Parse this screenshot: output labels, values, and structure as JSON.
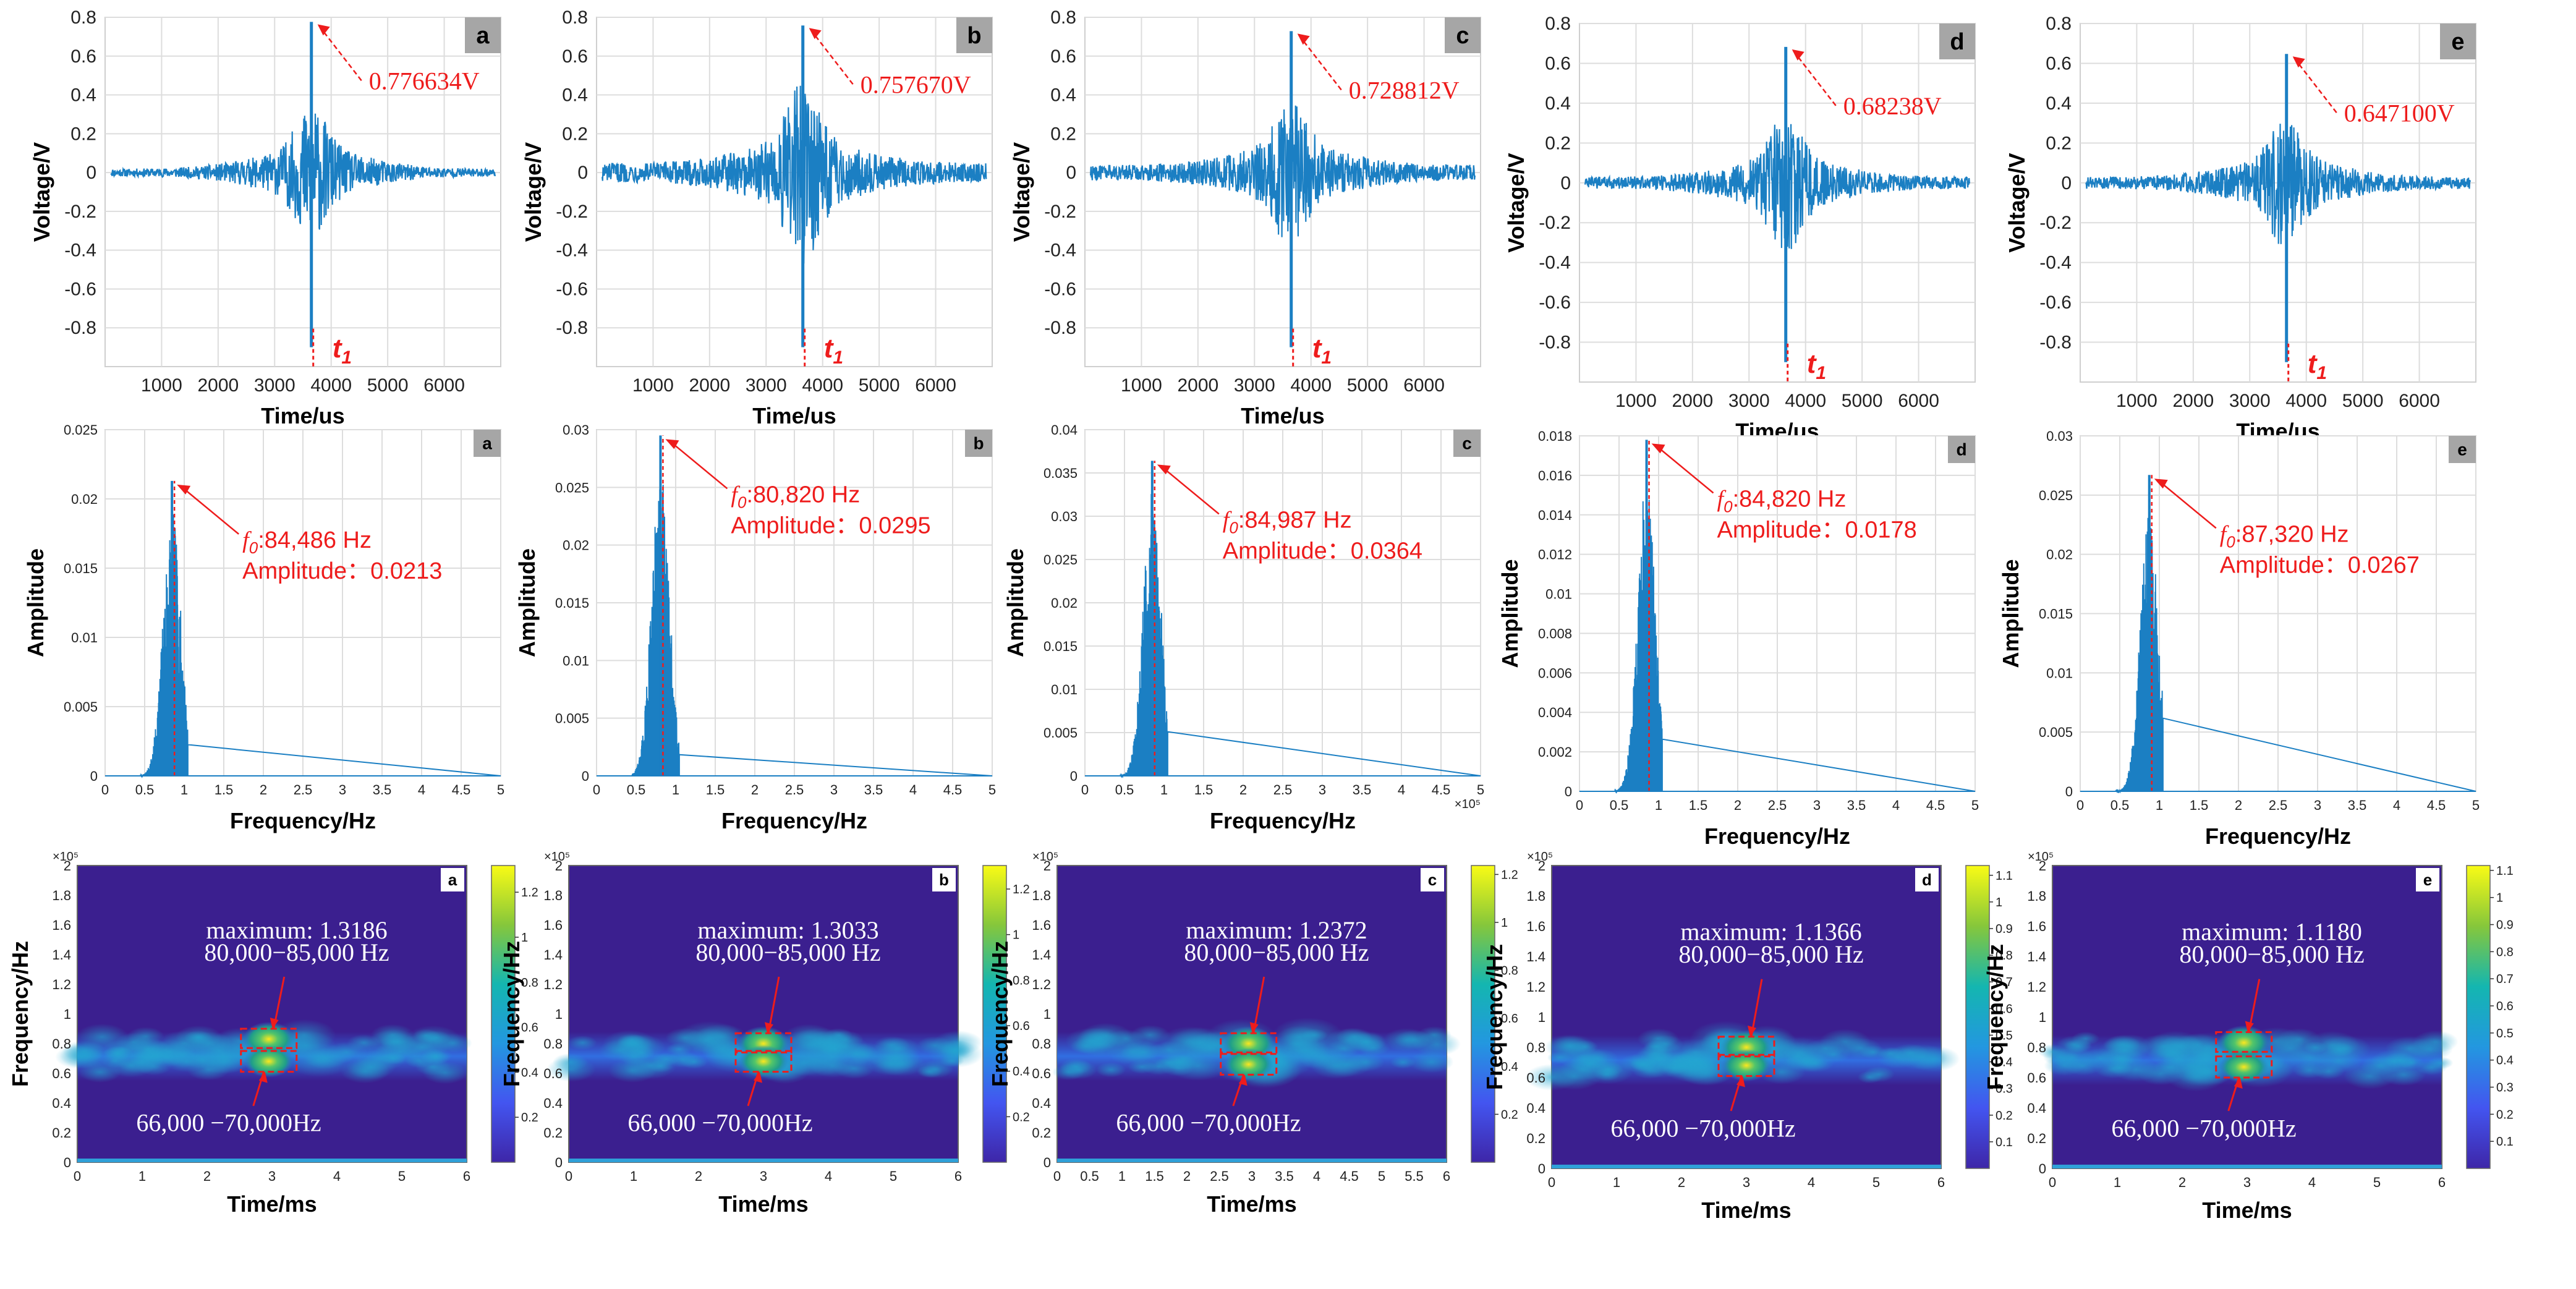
{
  "colors": {
    "signal": "#1b7fc3",
    "annotation": "#ee1c1c",
    "grid": "#dddddd",
    "letter_box": "#a6a6a6",
    "spectrogram_bg": "#3b1f8f"
  },
  "chart_data": [
    {
      "type": "line",
      "row": "waveform",
      "panel": "a",
      "xlabel": "Time/us",
      "ylabel": "Voltage/V",
      "xlim": [
        0,
        7000
      ],
      "ylim": [
        -1,
        0.8
      ],
      "xticks": [
        1000,
        2000,
        3000,
        4000,
        5000,
        6000
      ],
      "yticks": [
        -0.8,
        -0.6,
        -0.4,
        -0.2,
        0,
        0.2,
        0.4,
        0.6,
        0.8
      ],
      "peak_time_us": 3650,
      "peak_value": 0.776634,
      "min_value": -0.9,
      "envelope": [
        0.02,
        0.1,
        0.22,
        0.05
      ],
      "peak_label": "0.776634V",
      "marker_label": "t1"
    },
    {
      "type": "line",
      "row": "waveform",
      "panel": "b",
      "xlabel": "Time/us",
      "ylabel": "Voltage/V",
      "xlim": [
        0,
        7000
      ],
      "ylim": [
        -1,
        0.8
      ],
      "xticks": [
        1000,
        2000,
        3000,
        4000,
        5000,
        6000
      ],
      "yticks": [
        -0.8,
        -0.6,
        -0.4,
        -0.2,
        0,
        0.2,
        0.4,
        0.6,
        0.8
      ],
      "peak_time_us": 3650,
      "peak_value": 0.75767,
      "min_value": -0.9,
      "envelope": [
        0.05,
        0.12,
        0.3,
        0.1
      ],
      "peak_label": "0.757670V",
      "marker_label": "t1"
    },
    {
      "type": "line",
      "row": "waveform",
      "panel": "c",
      "xlabel": "Time/us",
      "ylabel": "Voltage/V",
      "xlim": [
        0,
        7000
      ],
      "ylim": [
        -1,
        0.8
      ],
      "xticks": [
        1000,
        2000,
        3000,
        4000,
        5000,
        6000
      ],
      "yticks": [
        -0.8,
        -0.6,
        -0.4,
        -0.2,
        0,
        0.2,
        0.4,
        0.6,
        0.8
      ],
      "peak_time_us": 3650,
      "peak_value": 0.728812,
      "min_value": -0.9,
      "envelope": [
        0.04,
        0.1,
        0.26,
        0.07
      ],
      "peak_label": "0.728812V",
      "marker_label": "t1"
    },
    {
      "type": "line",
      "row": "waveform",
      "panel": "d",
      "xlabel": "Time/us",
      "ylabel": "Voltage/V",
      "xlim": [
        0,
        7000
      ],
      "ylim": [
        -1,
        0.8
      ],
      "xticks": [
        1000,
        2000,
        3000,
        4000,
        5000,
        6000
      ],
      "yticks": [
        -0.8,
        -0.6,
        -0.4,
        -0.2,
        0,
        0.2,
        0.4,
        0.6,
        0.8
      ],
      "peak_time_us": 3650,
      "peak_value": 0.68238,
      "min_value": -0.9,
      "envelope": [
        0.03,
        0.09,
        0.24,
        0.06
      ],
      "peak_label": "0.68238V",
      "marker_label": "t1"
    },
    {
      "type": "line",
      "row": "waveform",
      "panel": "e",
      "xlabel": "Time/us",
      "ylabel": "Voltage/V",
      "xlim": [
        0,
        7000
      ],
      "ylim": [
        -1,
        0.8
      ],
      "xticks": [
        1000,
        2000,
        3000,
        4000,
        5000,
        6000
      ],
      "yticks": [
        -0.8,
        -0.6,
        -0.4,
        -0.2,
        0,
        0.2,
        0.4,
        0.6,
        0.8
      ],
      "peak_time_us": 3650,
      "peak_value": 0.6471,
      "min_value": -0.9,
      "envelope": [
        0.03,
        0.09,
        0.22,
        0.06
      ],
      "peak_label": "0.647100V",
      "marker_label": "t1"
    },
    {
      "type": "line",
      "row": "spectrum",
      "panel": "a",
      "xlabel": "Frequency/Hz",
      "ylabel": "Amplitude",
      "xlim": [
        0,
        5
      ],
      "ylim": [
        0,
        0.025
      ],
      "xticks": [
        0,
        0.5,
        1,
        1.5,
        2,
        2.5,
        3,
        3.5,
        4,
        4.5,
        5
      ],
      "yticks": [
        0,
        0.005,
        0.01,
        0.015,
        0.02,
        0.025
      ],
      "peak_x": 0.845,
      "peak_amplitude": 0.0213,
      "f0_label": ":84,486 Hz",
      "amp_label": "Amplitude：0.0213",
      "exponent_label": ""
    },
    {
      "type": "line",
      "row": "spectrum",
      "panel": "b",
      "xlabel": "Frequency/Hz",
      "ylabel": "Amplitude",
      "xlim": [
        0,
        5
      ],
      "ylim": [
        0,
        0.03
      ],
      "xticks": [
        0,
        0.5,
        1,
        1.5,
        2,
        2.5,
        3,
        3.5,
        4,
        4.5,
        5
      ],
      "yticks": [
        0,
        0.005,
        0.01,
        0.015,
        0.02,
        0.025,
        0.03
      ],
      "peak_x": 0.808,
      "peak_amplitude": 0.0295,
      "f0_label": ":80,820 Hz",
      "amp_label": "Amplitude：0.0295",
      "exponent_label": ""
    },
    {
      "type": "line",
      "row": "spectrum",
      "panel": "c",
      "xlabel": "Frequency/Hz",
      "ylabel": "Amplitude",
      "xlim": [
        0,
        5
      ],
      "ylim": [
        0,
        0.04
      ],
      "xticks": [
        0,
        0.5,
        1,
        1.5,
        2,
        2.5,
        3,
        3.5,
        4,
        4.5,
        5
      ],
      "yticks": [
        0,
        0.005,
        0.01,
        0.015,
        0.02,
        0.025,
        0.03,
        0.035,
        0.04
      ],
      "peak_x": 0.85,
      "peak_amplitude": 0.0364,
      "f0_label": ":84,987 Hz",
      "amp_label": "Amplitude：0.0364",
      "exponent_label": "×10⁵"
    },
    {
      "type": "line",
      "row": "spectrum",
      "panel": "d",
      "xlabel": "Frequency/Hz",
      "ylabel": "Amplitude",
      "xlim": [
        0,
        5
      ],
      "ylim": [
        0,
        0.018
      ],
      "xticks": [
        0,
        0.5,
        1,
        1.5,
        2,
        2.5,
        3,
        3.5,
        4,
        4.5,
        5
      ],
      "yticks": [
        0,
        0.002,
        0.004,
        0.006,
        0.008,
        0.01,
        0.012,
        0.014,
        0.016,
        0.018
      ],
      "peak_x": 0.848,
      "peak_amplitude": 0.0178,
      "f0_label": ":84,820 Hz",
      "amp_label": "Amplitude：0.0178",
      "exponent_label": ""
    },
    {
      "type": "line",
      "row": "spectrum",
      "panel": "e",
      "xlabel": "Frequency/Hz",
      "ylabel": "Amplitude",
      "xlim": [
        0,
        5
      ],
      "ylim": [
        0,
        0.03
      ],
      "xticks": [
        0,
        0.5,
        1,
        1.5,
        2,
        2.5,
        3,
        3.5,
        4,
        4.5,
        5
      ],
      "yticks": [
        0,
        0.005,
        0.01,
        0.015,
        0.02,
        0.025,
        0.03
      ],
      "peak_x": 0.873,
      "peak_amplitude": 0.0267,
      "f0_label": ":87,320 Hz",
      "amp_label": "Amplitude：0.0267",
      "exponent_label": ""
    },
    {
      "type": "heatmap",
      "row": "spectrogram",
      "panel": "a",
      "xlabel": "Time/ms",
      "ylabel": "Frequency/Hz",
      "xlim": [
        0,
        6
      ],
      "ylim": [
        0,
        2
      ],
      "xticks": [
        0,
        1,
        2,
        3,
        4,
        5,
        6
      ],
      "yticks": [
        0,
        0.2,
        0.4,
        0.6,
        0.8,
        1,
        1.2,
        1.4,
        1.6,
        1.8,
        2
      ],
      "ytick_labels": [
        "0",
        "0.2",
        "0.4",
        "0.6",
        "0.8",
        "1",
        "1.2",
        "1.4",
        "1.6",
        "1.8",
        "2"
      ],
      "exponent_label": "×10⁵",
      "colorbar_max": 1.3186,
      "colorbar_ticks": [
        0.2,
        0.4,
        0.6,
        0.8,
        1,
        1.2
      ],
      "max_label": "maximum: 1.3186",
      "band_label": "80,000−85,000 Hz",
      "low_label": "66,000 −70,000Hz",
      "hotspot_time_ms": 2.95,
      "hotspot_freq_high": 0.83,
      "hotspot_freq_low": 0.68
    },
    {
      "type": "heatmap",
      "row": "spectrogram",
      "panel": "b",
      "xlabel": "Time/ms",
      "ylabel": "Frequency/Hz",
      "xlim": [
        0,
        6
      ],
      "ylim": [
        0,
        2
      ],
      "xticks": [
        0,
        1,
        2,
        3,
        4,
        5,
        6
      ],
      "yticks": [
        0,
        0.2,
        0.4,
        0.6,
        0.8,
        1,
        1.2,
        1.4,
        1.6,
        1.8,
        2
      ],
      "ytick_labels": [
        "0",
        "0.2",
        "0.4",
        "0.6",
        "0.8",
        "1",
        "1.2",
        "1.4",
        "1.6",
        "1.8",
        "2"
      ],
      "exponent_label": "×10⁵",
      "colorbar_max": 1.3033,
      "colorbar_ticks": [
        0.2,
        0.4,
        0.6,
        0.8,
        1,
        1.2
      ],
      "max_label": "maximum: 1.3033",
      "band_label": "80,000−85,000 Hz",
      "low_label": "66,000 −70,000Hz",
      "hotspot_time_ms": 3.0,
      "hotspot_freq_high": 0.8,
      "hotspot_freq_low": 0.68
    },
    {
      "type": "heatmap",
      "row": "spectrogram",
      "panel": "c",
      "xlabel": "Time/ms",
      "ylabel": "Frequency/Hz",
      "xlim": [
        0,
        6
      ],
      "ylim": [
        0,
        2
      ],
      "xticks": [
        0,
        0.5,
        1,
        1.5,
        2,
        2.5,
        3,
        3.5,
        4,
        4.5,
        5,
        5.5,
        6
      ],
      "yticks": [
        0,
        0.2,
        0.4,
        0.6,
        0.8,
        1,
        1.2,
        1.4,
        1.6,
        1.8,
        2
      ],
      "ytick_labels": [
        "0",
        "0.2",
        "0.4",
        "0.6",
        "0.8",
        "1",
        "1.2",
        "1.4",
        "1.6",
        "1.8",
        "2"
      ],
      "exponent_label": "×10⁵",
      "colorbar_max": 1.2372,
      "colorbar_ticks": [
        0.2,
        0.4,
        0.6,
        0.8,
        1,
        1.2
      ],
      "max_label": "maximum: 1.2372",
      "band_label": "80,000−85,000 Hz",
      "low_label": "66,000 −70,000Hz",
      "hotspot_time_ms": 2.95,
      "hotspot_freq_high": 0.8,
      "hotspot_freq_low": 0.66
    },
    {
      "type": "heatmap",
      "row": "spectrogram",
      "panel": "d",
      "xlabel": "Time/ms",
      "ylabel": "Frequency/Hz",
      "xlim": [
        0,
        6
      ],
      "ylim": [
        0,
        2
      ],
      "xticks": [
        0,
        1,
        2,
        3,
        4,
        5,
        6
      ],
      "yticks": [
        0,
        0.2,
        0.4,
        0.6,
        0.8,
        1,
        1.2,
        1.4,
        1.6,
        1.8,
        2
      ],
      "ytick_labels": [
        "0",
        "0.2",
        "0.4",
        "0.6",
        "0.8",
        "1",
        "1.2",
        "1.4",
        "1.6",
        "1.8",
        "2"
      ],
      "exponent_label": "×10⁵",
      "colorbar_max": 1.1366,
      "colorbar_ticks": [
        0.1,
        0.2,
        0.3,
        0.4,
        0.5,
        0.6,
        0.7,
        0.8,
        0.9,
        1,
        1.1
      ],
      "max_label": "maximum: 1.1366",
      "band_label": "80,000−85,000 Hz",
      "low_label": "66,000 −70,000Hz",
      "hotspot_time_ms": 3.0,
      "hotspot_freq_high": 0.8,
      "hotspot_freq_low": 0.68
    },
    {
      "type": "heatmap",
      "row": "spectrogram",
      "panel": "e",
      "xlabel": "Time/ms",
      "ylabel": "Frequency/Hz",
      "xlim": [
        0,
        6
      ],
      "ylim": [
        0,
        2
      ],
      "xticks": [
        0,
        1,
        2,
        3,
        4,
        5,
        6
      ],
      "yticks": [
        0,
        0.2,
        0.4,
        0.6,
        0.8,
        1,
        1.2,
        1.4,
        1.6,
        1.8,
        2
      ],
      "ytick_labels": [
        "0",
        "0.2",
        "0.4",
        "0.6",
        "0.8",
        "1",
        "1.2",
        "1.4",
        "1.6",
        "1.8",
        "2"
      ],
      "exponent_label": "×10⁵",
      "colorbar_max": 1.118,
      "colorbar_ticks": [
        0.1,
        0.2,
        0.3,
        0.4,
        0.5,
        0.6,
        0.7,
        0.8,
        0.9,
        1,
        1.1
      ],
      "max_label": "maximum: 1.1180",
      "band_label": "80,000−85,000 Hz",
      "low_label": "66,000 −70,000Hz",
      "hotspot_time_ms": 2.95,
      "hotspot_freq_high": 0.83,
      "hotspot_freq_low": 0.67
    }
  ]
}
